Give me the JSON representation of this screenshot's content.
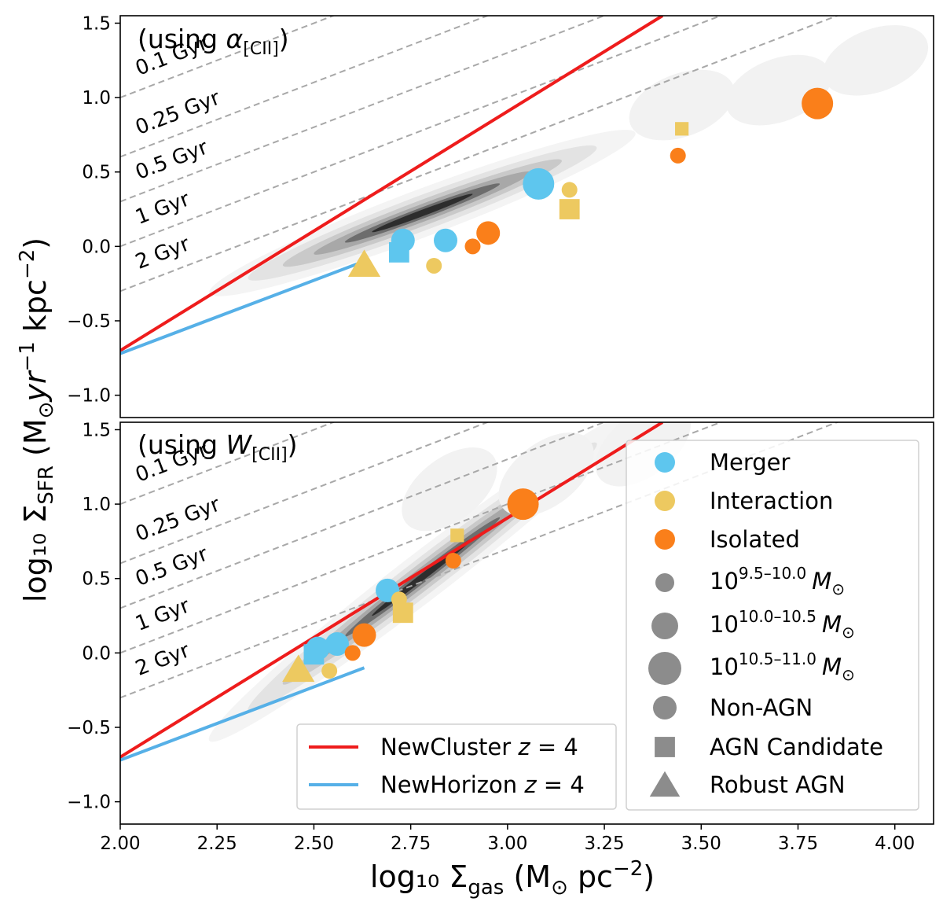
{
  "chart_data": {
    "type": "scatter",
    "shared_x": {
      "label": "log₁₀ Σ",
      "label_sub": "gas",
      "label_units": " (M",
      "label_sun": "⊙",
      "label_tail": " pc",
      "label_exp": "−2",
      "label_close": ")",
      "lim": [
        2.0,
        4.1
      ],
      "ticks": [
        2.0,
        2.25,
        2.5,
        2.75,
        3.0,
        3.25,
        3.5,
        3.75,
        4.0
      ],
      "tick_labels": [
        "2.00",
        "2.25",
        "2.50",
        "2.75",
        "3.00",
        "3.25",
        "3.50",
        "3.75",
        "4.00"
      ]
    },
    "shared_y": {
      "label": "log₁₀ Σ",
      "label_sub": "SFR",
      "label_units": " (M",
      "label_sun": "⊙",
      "label_yr": "yr",
      "label_yr_exp": "−1",
      "label_kpc": " kpc",
      "label_kpc_exp": "−2",
      "label_close": ")",
      "lim": [
        -1.15,
        1.55
      ],
      "ticks": [
        -1.0,
        -0.5,
        0.0,
        0.5,
        1.0,
        1.5
      ],
      "tick_labels": [
        "−1.0",
        "−0.5",
        "0.0",
        "0.5",
        "1.0",
        "1.5"
      ]
    },
    "colors": {
      "merger": "#5ec6ee",
      "interaction": "#edc960",
      "isolated": "#fa7f1a",
      "newcluster": "#ee1c1c",
      "newhorizon": "#56b0e7",
      "legend_marker": "#8c8c8c",
      "depletion_line": "#a8a8a8"
    },
    "depletion_times": [
      {
        "label": "0.1 Gyr",
        "offset": -1.0
      },
      {
        "label": "0.25 Gyr",
        "offset": -1.398
      },
      {
        "label": "0.5 Gyr",
        "offset": -1.699
      },
      {
        "label": "1 Gyr",
        "offset": -2.0
      },
      {
        "label": "2 Gyr",
        "offset": -2.301
      }
    ],
    "panels": [
      {
        "label_pre": "(using ",
        "label_sym": "α",
        "label_sub": "[CII]",
        "label_post": ")",
        "newcluster_line": {
          "x": [
            2.0,
            3.4
          ],
          "y": [
            -0.7,
            1.55
          ]
        },
        "newhorizon_line": {
          "x": [
            2.0,
            2.63
          ],
          "y": [
            -0.72,
            -0.1
          ]
        },
        "density_ridge": {
          "x0": 2.5,
          "y0": -0.05,
          "slope": 0.98
        },
        "points": [
          {
            "category": "merger",
            "marker": "circle",
            "mass": "10.0-10.5",
            "x": 2.73,
            "y": 0.04
          },
          {
            "category": "merger",
            "marker": "circle",
            "mass": "10.0-10.5",
            "x": 2.84,
            "y": 0.04
          },
          {
            "category": "merger",
            "marker": "circle",
            "mass": "10.5-11.0",
            "x": 3.08,
            "y": 0.42
          },
          {
            "category": "merger",
            "marker": "square",
            "mass": "10.0-10.5",
            "x": 2.72,
            "y": -0.04
          },
          {
            "category": "interaction",
            "marker": "circle",
            "mass": "9.5-10.0",
            "x": 2.81,
            "y": -0.13
          },
          {
            "category": "interaction",
            "marker": "circle",
            "mass": "9.5-10.0",
            "x": 3.16,
            "y": 0.38
          },
          {
            "category": "interaction",
            "marker": "square",
            "mass": "10.0-10.5",
            "x": 3.16,
            "y": 0.25
          },
          {
            "category": "interaction",
            "marker": "square",
            "mass": "9.5-10.0",
            "x": 3.45,
            "y": 0.79
          },
          {
            "category": "interaction",
            "marker": "triangle",
            "mass": "10.0-10.5",
            "x": 2.63,
            "y": -0.13
          },
          {
            "category": "isolated",
            "marker": "circle",
            "mass": "9.5-10.0",
            "x": 2.91,
            "y": 0.0
          },
          {
            "category": "isolated",
            "marker": "circle",
            "mass": "10.0-10.5",
            "x": 2.95,
            "y": 0.09
          },
          {
            "category": "isolated",
            "marker": "circle",
            "mass": "9.5-10.0",
            "x": 3.44,
            "y": 0.61
          },
          {
            "category": "isolated",
            "marker": "circle",
            "mass": "10.5-11.0",
            "x": 3.8,
            "y": 0.96
          }
        ]
      },
      {
        "label_pre": "(using ",
        "label_sym": "W",
        "label_sub": "[CII]",
        "label_post": ")",
        "newcluster_line": {
          "x": [
            2.0,
            3.4
          ],
          "y": [
            -0.7,
            1.55
          ]
        },
        "newhorizon_line": {
          "x": [
            2.0,
            2.63
          ],
          "y": [
            -0.72,
            -0.1
          ]
        },
        "density_ridge": {
          "x0": 2.5,
          "y0": -0.05,
          "slope": 2.0
        },
        "points": [
          {
            "category": "merger",
            "marker": "circle",
            "mass": "10.0-10.5",
            "x": 2.51,
            "y": 0.03
          },
          {
            "category": "merger",
            "marker": "circle",
            "mass": "10.0-10.5",
            "x": 2.56,
            "y": 0.06
          },
          {
            "category": "merger",
            "marker": "circle",
            "mass": "10.0-10.5",
            "x": 2.69,
            "y": 0.42
          },
          {
            "category": "merger",
            "marker": "square",
            "mass": "10.0-10.5",
            "x": 2.5,
            "y": -0.01
          },
          {
            "category": "interaction",
            "marker": "circle",
            "mass": "9.5-10.0",
            "x": 2.54,
            "y": -0.12
          },
          {
            "category": "interaction",
            "marker": "circle",
            "mass": "9.5-10.0",
            "x": 2.72,
            "y": 0.36
          },
          {
            "category": "interaction",
            "marker": "square",
            "mass": "10.0-10.5",
            "x": 2.73,
            "y": 0.27
          },
          {
            "category": "interaction",
            "marker": "square",
            "mass": "9.5-10.0",
            "x": 2.87,
            "y": 0.79
          },
          {
            "category": "interaction",
            "marker": "triangle",
            "mass": "10.0-10.5",
            "x": 2.46,
            "y": -0.12
          },
          {
            "category": "isolated",
            "marker": "circle",
            "mass": "9.5-10.0",
            "x": 2.6,
            "y": 0.0
          },
          {
            "category": "isolated",
            "marker": "circle",
            "mass": "10.0-10.5",
            "x": 2.63,
            "y": 0.12
          },
          {
            "category": "isolated",
            "marker": "circle",
            "mass": "9.5-10.0",
            "x": 2.86,
            "y": 0.62
          },
          {
            "category": "isolated",
            "marker": "circle",
            "mass": "10.5-11.0",
            "x": 3.04,
            "y": 1.0
          }
        ]
      }
    ],
    "legend_models": {
      "newcluster": {
        "name": "NewCluster ",
        "z_sym": "z",
        "z_val": " = 4"
      },
      "newhorizon": {
        "name": "NewHorizon ",
        "z_sym": "z",
        "z_val": " = 4"
      }
    },
    "legend_categories": [
      {
        "key": "merger",
        "label": "Merger"
      },
      {
        "key": "interaction",
        "label": "Interaction"
      },
      {
        "key": "isolated",
        "label": "Isolated"
      }
    ],
    "legend_masses": [
      {
        "key": "9.5-10.0",
        "base": "10",
        "exp": "9.5–10.0",
        "sun_sym": "M",
        "sun_sub": "⊙"
      },
      {
        "key": "10.0-10.5",
        "base": "10",
        "exp": "10.0–10.5",
        "sun_sym": "M",
        "sun_sub": "⊙"
      },
      {
        "key": "10.5-11.0",
        "base": "10",
        "exp": "10.5–11.0",
        "sun_sym": "M",
        "sun_sub": "⊙"
      }
    ],
    "legend_markers": [
      {
        "key": "circle",
        "label": "Non-AGN"
      },
      {
        "key": "square",
        "label": "AGN Candidate"
      },
      {
        "key": "triangle",
        "label": "Robust AGN"
      }
    ]
  }
}
